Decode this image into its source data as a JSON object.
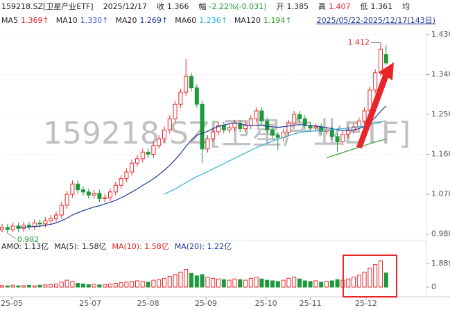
{
  "header": {
    "fields": [
      {
        "text": "159218.SZ[卫星产业ETF]",
        "color": "#222222"
      },
      {
        "text": "2025/12/17",
        "color": "#222222"
      },
      {
        "text": "收",
        "color": "#222222"
      },
      {
        "text": "1.366",
        "color": "#222222"
      },
      {
        "text": "幅",
        "color": "#222222"
      },
      {
        "text": "-2.22%(-0.031)",
        "color": "#1a9a3a"
      },
      {
        "text": "开",
        "color": "#222222"
      },
      {
        "text": "1.385",
        "color": "#222222"
      },
      {
        "text": "高",
        "color": "#222222"
      },
      {
        "text": "1.407",
        "color": "#e8262a"
      },
      {
        "text": "低",
        "color": "#222222"
      },
      {
        "text": "1.361",
        "color": "#222222"
      },
      {
        "text": "均",
        "color": "#222222"
      }
    ],
    "range": "2025/05/22-2025/12/17(143日)"
  },
  "chart_data": [
    {
      "type": "candlestick",
      "title": "159218.SZ[卫星产业ETF]",
      "up_color": "#e8262a",
      "down_color": "#1a9a3a",
      "grid": true,
      "ylim": [
        0.965,
        1.46
      ],
      "yticks": [
        {
          "value": 0.98,
          "label": "0.980"
        },
        {
          "value": 1.07,
          "label": "1.070"
        },
        {
          "value": 1.16,
          "label": "1.160"
        },
        {
          "value": 1.25,
          "label": "1.250"
        },
        {
          "value": 1.34,
          "label": "1.340"
        },
        {
          "value": 1.43,
          "label": "1.430"
        }
      ],
      "open": [
        0.99,
        0.995,
        0.99,
        0.998,
        0.993,
        1.0,
        0.997,
        1.005,
        1.003,
        1.01,
        1.015,
        1.023,
        1.045,
        1.07,
        1.093,
        1.08,
        1.075,
        1.068,
        1.072,
        1.06,
        1.062,
        1.075,
        1.09,
        1.105,
        1.12,
        1.14,
        1.15,
        1.165,
        1.16,
        1.18,
        1.195,
        1.215,
        1.24,
        1.273,
        1.3,
        1.336,
        1.31,
        1.273,
        1.172,
        1.195,
        1.211,
        1.225,
        1.215,
        1.22,
        1.23,
        1.218,
        1.225,
        1.24,
        1.258,
        1.235,
        1.215,
        1.203,
        1.198,
        1.21,
        1.23,
        1.25,
        1.24,
        1.225,
        1.219,
        1.222,
        1.212,
        1.215,
        1.2,
        1.188,
        1.205,
        1.215,
        1.222,
        1.235,
        1.258,
        1.305,
        1.344,
        1.385
      ],
      "high": [
        1.003,
        1.003,
        1.006,
        1.006,
        1.008,
        1.008,
        1.013,
        1.013,
        1.018,
        1.023,
        1.031,
        1.053,
        1.078,
        1.101,
        1.101,
        1.088,
        1.083,
        1.08,
        1.08,
        1.07,
        1.083,
        1.098,
        1.113,
        1.128,
        1.148,
        1.158,
        1.173,
        1.173,
        1.188,
        1.203,
        1.223,
        1.248,
        1.281,
        1.308,
        1.375,
        1.344,
        1.318,
        1.281,
        1.203,
        1.219,
        1.233,
        1.233,
        1.228,
        1.238,
        1.238,
        1.233,
        1.248,
        1.266,
        1.266,
        1.243,
        1.223,
        1.211,
        1.218,
        1.238,
        1.258,
        1.258,
        1.248,
        1.233,
        1.23,
        1.23,
        1.223,
        1.223,
        1.208,
        1.213,
        1.223,
        1.23,
        1.243,
        1.266,
        1.313,
        1.352,
        1.412,
        1.407
      ],
      "low": [
        0.984,
        0.982,
        0.984,
        0.985,
        0.985,
        0.989,
        0.989,
        0.995,
        0.995,
        1.002,
        1.007,
        1.015,
        1.037,
        1.062,
        1.072,
        1.067,
        1.06,
        1.06,
        1.052,
        1.052,
        1.054,
        1.067,
        1.082,
        1.097,
        1.112,
        1.132,
        1.142,
        1.152,
        1.152,
        1.172,
        1.187,
        1.207,
        1.232,
        1.265,
        1.292,
        1.302,
        1.265,
        1.14,
        1.164,
        1.187,
        1.203,
        1.207,
        1.207,
        1.212,
        1.21,
        1.21,
        1.217,
        1.232,
        1.227,
        1.207,
        1.195,
        1.17,
        1.19,
        1.202,
        1.222,
        1.232,
        1.217,
        1.211,
        1.211,
        1.204,
        1.204,
        1.192,
        1.165,
        1.18,
        1.197,
        1.207,
        1.214,
        1.227,
        1.25,
        1.297,
        1.336,
        1.361
      ],
      "close": [
        0.995,
        0.99,
        0.998,
        0.993,
        1.0,
        0.997,
        1.005,
        1.003,
        1.01,
        1.015,
        1.023,
        1.045,
        1.07,
        1.093,
        1.08,
        1.075,
        1.068,
        1.072,
        1.06,
        1.062,
        1.075,
        1.09,
        1.105,
        1.12,
        1.14,
        1.15,
        1.165,
        1.16,
        1.18,
        1.195,
        1.215,
        1.24,
        1.273,
        1.3,
        1.336,
        1.31,
        1.273,
        1.172,
        1.195,
        1.211,
        1.225,
        1.215,
        1.22,
        1.23,
        1.218,
        1.225,
        1.24,
        1.258,
        1.235,
        1.215,
        1.203,
        1.198,
        1.21,
        1.23,
        1.25,
        1.24,
        1.225,
        1.219,
        1.222,
        1.212,
        1.215,
        1.2,
        1.188,
        1.205,
        1.215,
        1.222,
        1.235,
        1.258,
        1.305,
        1.344,
        1.397,
        1.366
      ],
      "ma": [
        {
          "name": "MA5",
          "label": "1.369↑",
          "color": "#e02020"
        },
        {
          "name": "MA10",
          "label": "1.330↑",
          "color": "#3b5bd0"
        },
        {
          "name": "MA20",
          "label": "1.269↑",
          "color": "#1f3a93",
          "values": [
            null,
            null,
            null,
            0.995,
            0.996,
            0.996,
            0.997,
            0.998,
            1.0,
            1.002,
            1.005,
            1.01,
            1.016,
            1.023,
            1.028,
            1.033,
            1.037,
            1.041,
            1.044,
            1.048,
            1.052,
            1.056,
            1.062,
            1.068,
            1.075,
            1.082,
            1.09,
            1.097,
            1.105,
            1.114,
            1.124,
            1.135,
            1.148,
            1.162,
            1.178,
            1.192,
            1.203,
            1.207,
            1.212,
            1.218,
            1.223,
            1.226,
            1.229,
            1.231,
            1.229,
            1.226,
            1.225,
            1.226,
            1.225,
            1.223,
            1.222,
            1.221,
            1.222,
            1.224,
            1.226,
            1.227,
            1.226,
            1.225,
            1.224,
            1.222,
            1.22,
            1.218,
            1.215,
            1.214,
            1.214,
            1.215,
            1.218,
            1.223,
            1.232,
            1.243,
            1.257,
            1.269
          ]
        },
        {
          "name": "MA60",
          "label": "1.236↑",
          "color": "#2ab3d8",
          "values": [
            null,
            null,
            null,
            null,
            null,
            null,
            null,
            null,
            null,
            null,
            null,
            null,
            null,
            null,
            null,
            null,
            null,
            null,
            null,
            null,
            null,
            null,
            null,
            null,
            null,
            null,
            null,
            null,
            null,
            null,
            1.07,
            1.076,
            1.082,
            1.089,
            1.096,
            1.103,
            1.11,
            1.115,
            1.121,
            1.127,
            1.133,
            1.139,
            1.145,
            1.151,
            1.157,
            1.163,
            1.169,
            1.175,
            1.18,
            1.185,
            1.19,
            1.194,
            1.198,
            1.202,
            1.206,
            1.209,
            1.211,
            1.212,
            1.213,
            1.214,
            1.215,
            1.216,
            1.217,
            1.218,
            1.219,
            1.22,
            1.222,
            1.224,
            1.227,
            1.23,
            1.233,
            1.236
          ]
        },
        {
          "name": "MA120",
          "label": "1.194↑",
          "color": "#2e9e2e",
          "values": [
            null,
            null,
            null,
            null,
            null,
            null,
            null,
            null,
            null,
            null,
            null,
            null,
            null,
            null,
            null,
            null,
            null,
            null,
            null,
            null,
            null,
            null,
            null,
            null,
            null,
            null,
            null,
            null,
            null,
            null,
            null,
            null,
            null,
            null,
            null,
            null,
            null,
            null,
            null,
            null,
            null,
            null,
            null,
            null,
            null,
            null,
            null,
            null,
            null,
            null,
            null,
            null,
            null,
            null,
            null,
            null,
            null,
            null,
            null,
            null,
            1.152,
            1.156,
            1.16,
            1.164,
            1.168,
            1.172,
            1.176,
            1.18,
            1.184,
            1.188,
            1.191,
            1.194
          ]
        }
      ]
    },
    {
      "type": "bar",
      "legend": [
        {
          "text": "AMO: 1.13亿",
          "color": "#222222"
        },
        {
          "text": "MA(5): 1.58亿",
          "color": "#222222"
        },
        {
          "text": "MA(10): 1.58亿",
          "color": "#e02020"
        },
        {
          "text": "MA(20): 1.22亿",
          "color": "#1f3a93"
        }
      ],
      "ylim": [
        0,
        2.3
      ],
      "yticks": [
        0,
        {
          "value": 1.88,
          "label": "1.88亿"
        }
      ],
      "xticks": [
        {
          "value": 1.8,
          "label": "25-05"
        },
        {
          "value": 16.3,
          "label": "25-07"
        },
        {
          "value": 27,
          "label": "25-08"
        },
        {
          "value": 37.7,
          "label": "25-09"
        },
        {
          "value": 48.8,
          "label": "25-10"
        },
        {
          "value": 57,
          "label": "25-11"
        },
        {
          "value": 67.3,
          "label": "25-12"
        }
      ],
      "values": [
        0.12,
        0.1,
        0.15,
        0.1,
        0.12,
        0.14,
        0.1,
        0.15,
        0.18,
        0.2,
        0.25,
        0.4,
        0.55,
        0.45,
        0.3,
        0.25,
        0.2,
        0.22,
        0.18,
        0.2,
        0.25,
        0.3,
        0.35,
        0.4,
        0.45,
        0.5,
        0.45,
        0.4,
        0.55,
        0.6,
        0.7,
        0.85,
        1.0,
        1.2,
        1.4,
        1.1,
        0.9,
        1.0,
        0.8,
        0.7,
        0.65,
        0.6,
        0.55,
        0.65,
        0.6,
        0.55,
        0.7,
        0.8,
        0.65,
        0.55,
        0.5,
        0.45,
        0.55,
        0.7,
        0.8,
        0.65,
        0.5,
        0.45,
        0.5,
        0.4,
        0.45,
        0.5,
        0.6,
        0.55,
        0.65,
        0.8,
        0.95,
        1.2,
        1.5,
        1.8,
        2.1,
        1.13
      ]
    }
  ]
}
